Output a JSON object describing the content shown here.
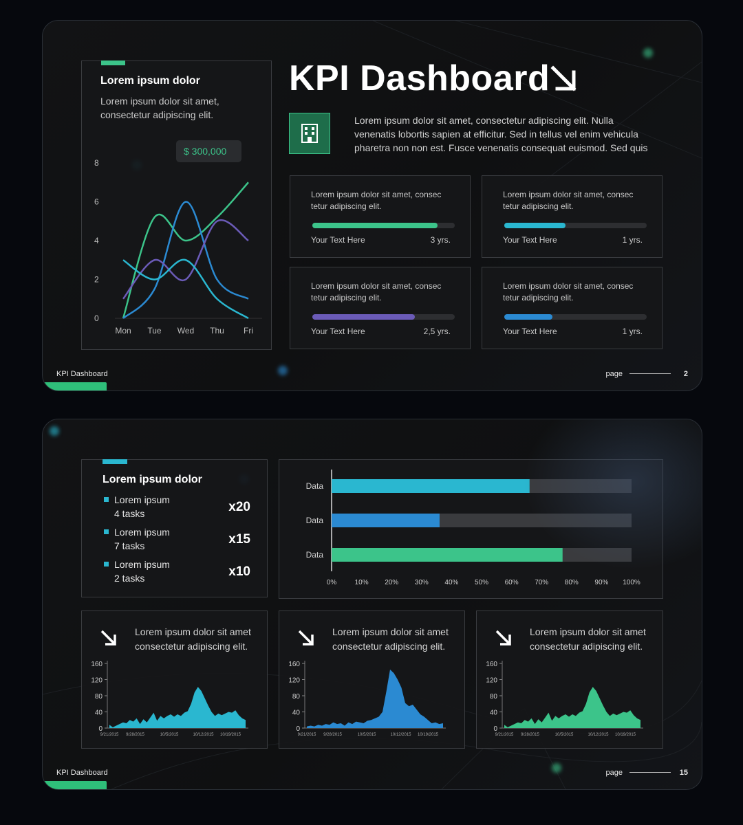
{
  "slide1": {
    "title": "KPI Dashboard",
    "description": "Lorem ipsum dolor sit amet, consectetur adipiscing elit. Nulla venenatis lobortis sapien at efficitur. Sed in tellus vel enim vehicula pharetra non non est. Fusce venenatis consequat euismod. Sed quis",
    "footer_label": "KPI Dashboard",
    "page_label": "page",
    "page_number": "2",
    "line_card": {
      "heading": "Lorem ipsum dolor",
      "subtext": "Lorem ipsum dolor sit amet, consectetur adipiscing elit.",
      "callout": "$ 300,000"
    },
    "progress_cards": [
      {
        "text": "Lorem ipsum dolor sit amet, consec tetur adipiscing elit.",
        "label": "Your Text Here",
        "value": "3 yrs.",
        "fraction": 0.88,
        "color": "#3cc48a"
      },
      {
        "text": "Lorem ipsum dolor sit amet, consec tetur adipiscing elit.",
        "label": "Your Text Here",
        "value": "1 yrs.",
        "fraction": 0.43,
        "color": "#2ab7d0"
      },
      {
        "text": "Lorem ipsum dolor sit amet, consec tetur adipiscing elit.",
        "label": "Your Text Here",
        "value": "2,5 yrs.",
        "fraction": 0.72,
        "color": "#6b5bb8"
      },
      {
        "text": "Lorem ipsum dolor sit amet, consec tetur adipiscing elit.",
        "label": "Your Text Here",
        "value": "1  yrs.",
        "fraction": 0.34,
        "color": "#2b8ad2"
      }
    ]
  },
  "slide2": {
    "footer_label": "KPI Dashboard",
    "page_label": "page",
    "page_number": "15",
    "tasks_card": {
      "heading": "Lorem ipsum dolor",
      "items": [
        {
          "line1": "Lorem ipsum",
          "line2": "4 tasks",
          "multiplier": "x20"
        },
        {
          "line1": "Lorem ipsum",
          "line2": "7 tasks",
          "multiplier": "x15"
        },
        {
          "line1": "Lorem ipsum",
          "line2": "2 tasks",
          "multiplier": "x10"
        }
      ]
    },
    "mini_cards": [
      {
        "text": "Lorem ipsum dolor sit amet consectetur adipiscing elit."
      },
      {
        "text": "Lorem ipsum dolor sit amet consectetur adipiscing elit."
      },
      {
        "text": "Lorem ipsum dolor sit amet consectetur adipiscing elit."
      }
    ]
  },
  "colors": {
    "green": "#3cc48a",
    "cyan": "#2ab7d0",
    "blue": "#2b8ad2",
    "purple": "#6b5bb8",
    "track": "#3a3b3e"
  },
  "icons": {
    "title_arrow": "arrow-down-right-icon",
    "building": "building-icon"
  },
  "chart_data": [
    {
      "type": "line",
      "categories": [
        "Mon",
        "Tue",
        "Wed",
        "Thu",
        "Fri"
      ],
      "ylim": [
        0,
        8
      ],
      "yticks": [
        0,
        2,
        4,
        6,
        8
      ],
      "series": [
        {
          "values": [
            0,
            5.2,
            4,
            5.2,
            7
          ],
          "color": "#3cc48a"
        },
        {
          "values": [
            0,
            1.5,
            6,
            2,
            1
          ],
          "color": "#2b8ad2"
        },
        {
          "values": [
            1,
            3,
            2,
            5,
            4
          ],
          "color": "#6b5bb8"
        },
        {
          "values": [
            3,
            2,
            3,
            1,
            0
          ],
          "color": "#2ab7d0"
        }
      ],
      "annotation": "$ 300,000"
    },
    {
      "type": "bar",
      "orientation": "horizontal",
      "categories": [
        "Data",
        "Data",
        "Data"
      ],
      "values": [
        66,
        36,
        77
      ],
      "colors": [
        "#2ab7d0",
        "#2b8ad2",
        "#3cc48a"
      ],
      "xlim": [
        0,
        100
      ],
      "xticks": [
        "0%",
        "10%",
        "20%",
        "30%",
        "40%",
        "50%",
        "60%",
        "70%",
        "80%",
        "90%",
        "100%"
      ]
    },
    {
      "type": "area",
      "ylim": [
        0,
        160
      ],
      "yticks": [
        0,
        40,
        80,
        120,
        160
      ],
      "xticks": [
        "9/21/2015",
        "9/28/2015",
        "10/5/2015",
        "10/12/2015",
        "10/19/2015"
      ],
      "values": [
        8,
        2,
        6,
        10,
        14,
        12,
        20,
        16,
        24,
        10,
        22,
        14,
        26,
        38,
        18,
        30,
        24,
        30,
        34,
        28,
        34,
        30,
        38,
        42,
        60,
        88,
        102,
        92,
        74,
        56,
        40,
        30,
        36,
        32,
        36,
        40,
        38,
        44,
        32,
        24,
        20
      ],
      "color": "#2ab7d0"
    },
    {
      "type": "area",
      "ylim": [
        0,
        160
      ],
      "yticks": [
        0,
        40,
        80,
        120,
        160
      ],
      "xticks": [
        "9/21/2015",
        "9/28/2015",
        "10/5/2015",
        "10/12/2015",
        "10/19/2015"
      ],
      "values": [
        4,
        6,
        4,
        8,
        6,
        10,
        8,
        14,
        10,
        12,
        6,
        14,
        10,
        16,
        14,
        12,
        18,
        20,
        24,
        28,
        40,
        90,
        145,
        136,
        120,
        100,
        62,
        54,
        58,
        46,
        34,
        28,
        20,
        12,
        14,
        10,
        12
      ],
      "color": "#2b8ad2"
    },
    {
      "type": "area",
      "ylim": [
        0,
        160
      ],
      "yticks": [
        0,
        40,
        80,
        120,
        160
      ],
      "xticks": [
        "9/21/2015",
        "9/28/2015",
        "10/5/2015",
        "10/12/2015",
        "10/19/2015"
      ],
      "values": [
        8,
        2,
        6,
        10,
        14,
        12,
        20,
        16,
        24,
        10,
        22,
        14,
        26,
        38,
        18,
        30,
        24,
        30,
        34,
        28,
        34,
        30,
        38,
        42,
        60,
        88,
        102,
        92,
        74,
        56,
        40,
        30,
        36,
        32,
        36,
        40,
        38,
        44,
        32,
        24,
        20
      ],
      "color": "#3cc48a"
    }
  ]
}
